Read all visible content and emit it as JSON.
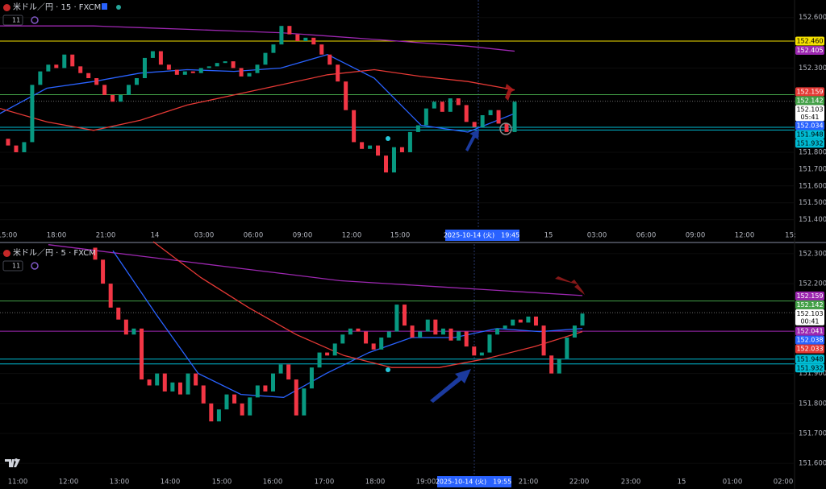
{
  "panels": [
    {
      "header": {
        "symbol": "米ドル／円 · 15 · FXCM",
        "indicator_count": "11"
      },
      "ylim": [
        151.355,
        152.704
      ],
      "yticks": [
        {
          "value": 152.6,
          "label": "152.600"
        },
        {
          "value": 152.3,
          "label": "152.300"
        },
        {
          "value": 151.8,
          "label": "151.800"
        },
        {
          "value": 151.7,
          "label": "151.700"
        },
        {
          "value": 151.6,
          "label": "151.600"
        },
        {
          "value": 151.5,
          "label": "151.500"
        },
        {
          "value": 151.4,
          "label": "151.400"
        }
      ],
      "time_axis": [
        "15:00",
        "18:00",
        "21:00",
        "14",
        "03:00",
        "06:00",
        "09:00",
        "12:00",
        "15:00",
        "15",
        "03:00",
        "06:00",
        "09:00",
        "12:00",
        "15:"
      ],
      "crosshair_time": "2025-10-14 (火)　19:45",
      "candles": {
        "open": 151.88,
        "closes": [
          151.84,
          151.8,
          151.86,
          152.2,
          152.28,
          152.32,
          152.3,
          152.38,
          152.31,
          152.27,
          152.24,
          152.2,
          152.14,
          152.1,
          152.14,
          152.2,
          152.24,
          152.36,
          152.4,
          152.32,
          152.29,
          152.26,
          152.28,
          152.27,
          152.3,
          152.31,
          152.33,
          152.34,
          152.3,
          152.25,
          152.27,
          152.32,
          152.39,
          152.44,
          152.55,
          152.5,
          152.46,
          152.48,
          152.44,
          152.38,
          152.32,
          152.22,
          152.05,
          151.86,
          151.82,
          151.84,
          151.78,
          151.68,
          151.83,
          151.8,
          151.92,
          151.96,
          152.06,
          152.1,
          152.04,
          152.12,
          152.08,
          151.98,
          151.95,
          152.02,
          152.05,
          151.97,
          151.92,
          152.1
        ]
      },
      "moving_averages": [
        {
          "color": "#9c27b0",
          "values": [
            152.55,
            152.55,
            152.55,
            152.54,
            152.53,
            152.52,
            152.51,
            152.49,
            152.47,
            152.45,
            152.43,
            152.4
          ]
        },
        {
          "color": "#2962ff",
          "values": [
            152.03,
            152.18,
            152.22,
            152.27,
            152.29,
            152.28,
            152.3,
            152.38,
            152.24,
            151.96,
            151.92,
            152.03
          ]
        },
        {
          "color": "#e53935",
          "values": [
            152.06,
            151.98,
            151.93,
            151.99,
            152.08,
            152.14,
            152.2,
            152.26,
            152.29,
            152.25,
            152.22,
            152.17
          ]
        }
      ],
      "price_labels": [
        {
          "value": 152.46,
          "label": "152.460",
          "color": "#f5e000",
          "line": true
        },
        {
          "value": 152.405,
          "label": "152.405",
          "color": "#9c27b0"
        },
        {
          "value": 152.159,
          "label": "152.159",
          "color": "#e53935"
        },
        {
          "value": 152.142,
          "label": "152.142",
          "color": "#43a047",
          "line": true
        },
        {
          "value": 152.103,
          "label": "152.103",
          "color": "#ffffff",
          "countdown": "05:41",
          "line": true
        },
        {
          "value": 152.034,
          "label": "152.034",
          "color": "#2962ff"
        },
        {
          "value": 151.948,
          "label": "151.948",
          "color": "#00bcd4",
          "line": true
        },
        {
          "value": 151.932,
          "label": "151.932",
          "color": "#00bcd4",
          "line": true
        }
      ]
    },
    {
      "header": {
        "symbol": "米ドル／円 · 5 · FXCM",
        "indicator_count": "11"
      },
      "ylim": [
        151.56,
        152.332
      ],
      "yticks": [
        {
          "value": 152.3,
          "label": "152.300"
        },
        {
          "value": 152.2,
          "label": "152.200"
        },
        {
          "value": 151.9,
          "label": "151.900"
        },
        {
          "value": 151.8,
          "label": "151.800"
        },
        {
          "value": 151.7,
          "label": "151.700"
        },
        {
          "value": 151.6,
          "label": "151.600"
        }
      ],
      "time_axis": [
        "11:00",
        "12:00",
        "13:00",
        "14:00",
        "15:00",
        "16:00",
        "17:00",
        "18:00",
        "19:00",
        "21:00",
        "22:00",
        "23:00",
        "15",
        "01:00",
        "02:00"
      ],
      "crosshair_time": "2025-10-14 (火)　19:55",
      "candles": {
        "open": 152.32,
        "closes": [
          152.28,
          152.2,
          152.12,
          152.08,
          152.03,
          152.05,
          151.88,
          151.86,
          151.9,
          151.84,
          151.87,
          151.83,
          151.9,
          151.86,
          151.8,
          151.74,
          151.78,
          151.83,
          151.8,
          151.76,
          151.82,
          151.86,
          151.84,
          151.9,
          151.93,
          151.88,
          151.76,
          151.85,
          151.92,
          151.97,
          151.96,
          152.0,
          152.03,
          152.05,
          152.04,
          152.0,
          151.98,
          152.02,
          152.04,
          152.13,
          152.06,
          152.02,
          152.04,
          152.08,
          152.03,
          152.05,
          152.01,
          152.04,
          151.99,
          151.96,
          151.97,
          152.03,
          152.05,
          152.06,
          152.08,
          152.07,
          152.09,
          152.06,
          151.96,
          151.9,
          151.95,
          152.02,
          152.06,
          152.1
        ]
      },
      "moving_averages": [
        {
          "color": "#9c27b0",
          "values": [
            152.33,
            152.31,
            152.29,
            152.27,
            152.25,
            152.23,
            152.21,
            152.2,
            152.19,
            152.18,
            152.17,
            152.16
          ]
        },
        {
          "color": "#2962ff",
          "values": [
            152.31,
            152.1,
            151.9,
            151.83,
            151.82,
            151.9,
            151.97,
            152.02,
            152.02,
            152.05,
            152.04,
            152.05
          ]
        },
        {
          "color": "#e53935",
          "values": [
            152.34,
            152.22,
            152.12,
            152.03,
            151.96,
            151.92,
            151.92,
            151.95,
            151.99,
            152.04
          ]
        }
      ],
      "price_labels": [
        {
          "value": 152.159,
          "label": "152.159",
          "color": "#9c27b0"
        },
        {
          "value": 152.142,
          "label": "152.142",
          "color": "#43a047",
          "line": true
        },
        {
          "value": 152.103,
          "label": "152.103",
          "color": "#ffffff",
          "countdown": "00:41",
          "line": true
        },
        {
          "value": 152.041,
          "label": "152.041",
          "color": "#9c27b0",
          "line": true
        },
        {
          "value": 152.038,
          "label": "152.038",
          "color": "#2962ff"
        },
        {
          "value": 152.033,
          "label": "152.033",
          "color": "#e53935"
        },
        {
          "value": 151.948,
          "label": "151.948",
          "color": "#00bcd4",
          "line": true
        },
        {
          "value": 151.932,
          "label": "151.932",
          "color": "#00bcd4",
          "line": true
        }
      ]
    }
  ]
}
